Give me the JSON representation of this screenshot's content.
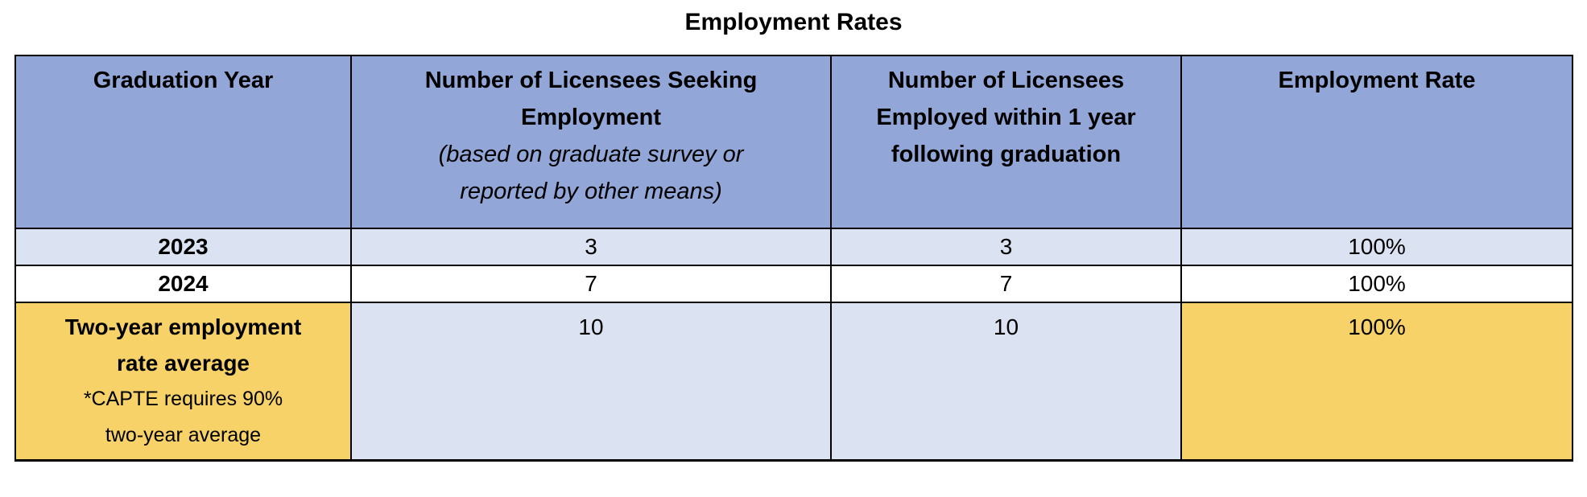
{
  "title": "Employment Rates",
  "colors": {
    "header_bg": "#93A6D8",
    "alt_row_bg": "#DBE2F1",
    "white_row_bg": "#FFFFFF",
    "highlight_bg": "#F6D268",
    "border": "#000000",
    "text": "#000000"
  },
  "table": {
    "header": [
      {
        "name": "graduation-year",
        "lines": [
          {
            "text": "Graduation Year",
            "bold": true
          }
        ]
      },
      {
        "name": "licensees-seeking-employment",
        "lines": [
          {
            "text": "Number of Licensees Seeking",
            "bold": true
          },
          {
            "text": "Employment",
            "bold": true
          },
          {
            "text": "(based on graduate survey or",
            "italic": true
          },
          {
            "text": "reported by other means)",
            "italic": true
          }
        ]
      },
      {
        "name": "licensees-employed-within-1-year",
        "lines": [
          {
            "text": "Number of Licensees",
            "bold": true
          },
          {
            "text": "Employed within 1 year",
            "bold": true
          },
          {
            "text": "following graduation",
            "bold": true
          }
        ]
      },
      {
        "name": "employment-rate",
        "lines": [
          {
            "text": "Employment Rate",
            "bold": true
          }
        ]
      }
    ],
    "rows": [
      {
        "name": "row-2023",
        "type": "year",
        "cells": [
          {
            "bg": "light",
            "lines": [
              {
                "text": "2023",
                "bold": true
              }
            ]
          },
          {
            "bg": "light",
            "lines": [
              {
                "text": "3"
              }
            ]
          },
          {
            "bg": "light",
            "lines": [
              {
                "text": "3"
              }
            ]
          },
          {
            "bg": "light",
            "lines": [
              {
                "text": "100%"
              }
            ]
          }
        ]
      },
      {
        "name": "row-2024",
        "type": "year",
        "cells": [
          {
            "bg": "white",
            "lines": [
              {
                "text": "2024",
                "bold": true
              }
            ]
          },
          {
            "bg": "white",
            "lines": [
              {
                "text": "7"
              }
            ]
          },
          {
            "bg": "white",
            "lines": [
              {
                "text": "7"
              }
            ]
          },
          {
            "bg": "white",
            "lines": [
              {
                "text": "100%"
              }
            ]
          }
        ]
      },
      {
        "name": "row-two-year-average",
        "type": "avg",
        "cells": [
          {
            "bg": "gold",
            "lines": [
              {
                "text": "Two-year employment",
                "bold": true
              },
              {
                "text": "rate average",
                "bold": true
              },
              {
                "text": "*CAPTE requires 90%",
                "small": true
              },
              {
                "text": "two-year average",
                "small": true
              }
            ]
          },
          {
            "bg": "light",
            "lines": [
              {
                "text": "10"
              }
            ]
          },
          {
            "bg": "light",
            "lines": [
              {
                "text": "10"
              }
            ]
          },
          {
            "bg": "gold",
            "lines": [
              {
                "text": "100%"
              }
            ]
          }
        ]
      }
    ]
  }
}
